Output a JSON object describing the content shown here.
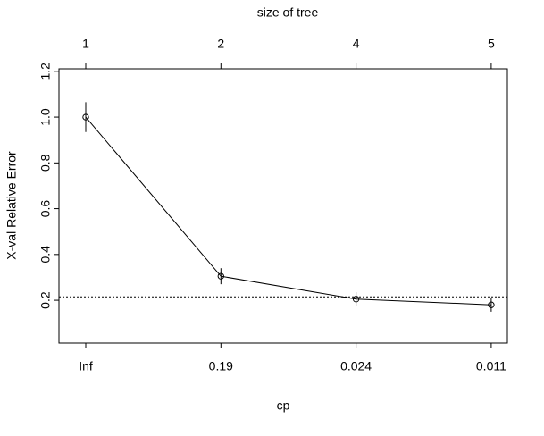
{
  "chart_data": {
    "type": "line",
    "xlabel": "cp",
    "ylabel": "X-val Relative Error",
    "x2label": "size of tree",
    "categories": [
      "Inf",
      "0.19",
      "0.024",
      "0.011"
    ],
    "x2_categories": [
      "1",
      "2",
      "4",
      "5"
    ],
    "series": [
      {
        "color": "#000000",
        "values": [
          1.0,
          0.305,
          0.205,
          0.18
        ],
        "errors": [
          0.065,
          0.035,
          0.03,
          0.03
        ]
      }
    ],
    "reference_line": 0.215,
    "ylim": [
      0.013,
      1.211
    ],
    "yticks": [
      0.2,
      0.4,
      0.6,
      0.8,
      {
        "value": 1,
        "label": "1.0"
      },
      1.2
    ]
  }
}
